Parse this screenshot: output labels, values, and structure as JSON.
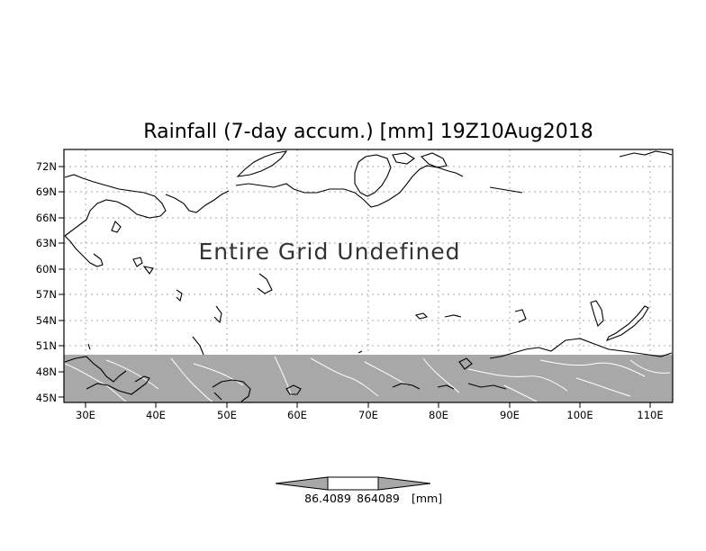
{
  "map": {
    "title": "Rainfall (7-day accum.) [mm] 19Z10Aug2018",
    "message": "Entire Grid Undefined",
    "lat_labels": [
      "72N",
      "69N",
      "66N",
      "63N",
      "60N",
      "57N",
      "54N",
      "51N",
      "48N",
      "45N"
    ],
    "lon_labels": [
      "30E",
      "40E",
      "50E",
      "60E",
      "70E",
      "80E",
      "90E",
      "100E",
      "110E"
    ],
    "lon_range": [
      27,
      113
    ],
    "lat_range": [
      44.5,
      73.5
    ],
    "masked_region": {
      "lat_max": 50,
      "color": "#a8a8a8"
    }
  },
  "colorbar": {
    "labels": [
      "86.4089",
      "864089"
    ],
    "unit": "[mm]",
    "colors": [
      "#a8a8a8",
      "#ffffff",
      "#a8a8a8"
    ]
  }
}
